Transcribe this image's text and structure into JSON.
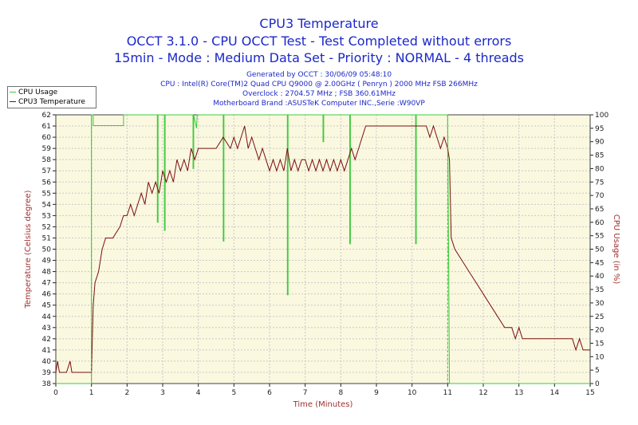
{
  "header": {
    "title": "CPU3 Temperature",
    "subtitle1": "OCCT 3.1.0 - CPU OCCT Test - Test Completed without errors",
    "subtitle2": "15min - Mode : Medium Data Set - Priority : NORMAL - 4 threads",
    "info_generated": "Generated by OCCT : 30/06/09 05:48:10",
    "info_cpu": "CPU : Intel(R) Core(TM)2 Quad CPU Q9000 @ 2.00GHz ( Penryn ) 2000 MHz FSB 266MHz",
    "info_overclock": "Overclock : 2704.57 MHz ; FSB 360.61MHz",
    "info_motherboard": "Motherboard Brand :ASUSTeK Computer INC.,Serie :W90VP"
  },
  "colors": {
    "title": "#1c28c8",
    "plot_background": "#fbf8e0",
    "grid": "#c8c8c8",
    "temperature": "#7a0e0e",
    "cpu_usage": "#3ccc3c",
    "right_axis_label": "#a03030"
  },
  "chart_data": {
    "type": "line",
    "title": "CPU3 Temperature",
    "xlabel": "Time (Minutes)",
    "ylabel": "Temperature (Celsius degree)",
    "y2label": "CPU Usage (in %)",
    "xlim": [
      0,
      15
    ],
    "ylim": [
      38,
      62
    ],
    "y2lim": [
      0,
      100
    ],
    "x_ticks": [
      0,
      1,
      2,
      3,
      4,
      5,
      6,
      7,
      8,
      9,
      10,
      11,
      12,
      13,
      14,
      15
    ],
    "y_ticks": [
      38,
      39,
      40,
      41,
      42,
      43,
      44,
      45,
      46,
      47,
      48,
      49,
      50,
      51,
      52,
      53,
      54,
      55,
      56,
      57,
      58,
      59,
      60,
      61,
      62
    ],
    "y2_ticks": [
      0,
      5,
      10,
      15,
      20,
      25,
      30,
      35,
      40,
      45,
      50,
      55,
      60,
      65,
      70,
      75,
      80,
      85,
      90,
      95,
      100
    ],
    "grid": true,
    "legend": "top-left",
    "series": [
      {
        "name": "CPU Usage",
        "axis": "right",
        "x": [
          0,
          1.0,
          1.0,
          1.05,
          1.05,
          1.9,
          1.9,
          1.92,
          1.92,
          2.85,
          2.85,
          2.87,
          2.87,
          3.05,
          3.05,
          3.07,
          3.07,
          3.85,
          3.85,
          3.87,
          3.87,
          3.95,
          3.97,
          4.7,
          4.7,
          4.72,
          4.72,
          6.5,
          6.5,
          6.52,
          6.52,
          7.5,
          7.5,
          7.52,
          7.52,
          8.25,
          8.25,
          8.27,
          8.27,
          10.1,
          10.1,
          10.12,
          10.12,
          11.0,
          11.0,
          11.05,
          11.05,
          15
        ],
        "values": [
          0,
          0,
          100,
          100,
          96,
          96,
          100,
          100,
          100,
          100,
          60,
          60,
          100,
          100,
          57,
          57,
          100,
          100,
          80,
          80,
          100,
          95,
          100,
          100,
          53,
          53,
          100,
          100,
          33,
          33,
          100,
          100,
          90,
          90,
          100,
          100,
          52,
          52,
          100,
          100,
          52,
          52,
          100,
          100,
          100,
          0,
          0,
          0
        ]
      },
      {
        "name": "CPU3 Temperature",
        "axis": "left",
        "x": [
          0,
          0.05,
          0.1,
          0.3,
          0.4,
          0.45,
          0.5,
          1.0,
          1.05,
          1.1,
          1.2,
          1.3,
          1.4,
          1.5,
          1.6,
          1.8,
          1.9,
          2.0,
          2.1,
          2.2,
          2.3,
          2.4,
          2.5,
          2.6,
          2.7,
          2.8,
          2.9,
          3.0,
          3.1,
          3.2,
          3.3,
          3.4,
          3.5,
          3.6,
          3.7,
          3.8,
          3.9,
          4.0,
          4.2,
          4.5,
          4.7,
          4.9,
          5.0,
          5.1,
          5.2,
          5.3,
          5.4,
          5.5,
          5.6,
          5.7,
          5.8,
          5.9,
          6.0,
          6.1,
          6.2,
          6.3,
          6.4,
          6.5,
          6.6,
          6.7,
          6.8,
          6.9,
          7.0,
          7.1,
          7.2,
          7.3,
          7.4,
          7.5,
          7.6,
          7.7,
          7.8,
          7.9,
          8.0,
          8.1,
          8.2,
          8.3,
          8.4,
          8.5,
          8.6,
          8.7,
          8.8,
          9.2,
          9.6,
          10.0,
          10.2,
          10.4,
          10.5,
          10.6,
          10.7,
          10.8,
          10.9,
          11.0,
          11.05,
          11.1,
          11.2,
          11.4,
          11.6,
          11.8,
          12.0,
          12.2,
          12.4,
          12.6,
          12.8,
          12.9,
          13.0,
          13.1,
          13.2,
          13.4,
          13.6,
          13.8,
          14.0,
          14.2,
          14.4,
          14.5,
          14.6,
          14.7,
          14.8,
          15.0
        ],
        "values": [
          39,
          40,
          39,
          39,
          40,
          39,
          39,
          39,
          45,
          47,
          48,
          50,
          51,
          51,
          51,
          52,
          53,
          53,
          54,
          53,
          54,
          55,
          54,
          56,
          55,
          56,
          55,
          57,
          56,
          57,
          56,
          58,
          57,
          58,
          57,
          59,
          58,
          59,
          59,
          59,
          60,
          59,
          60,
          59,
          60,
          61,
          59,
          60,
          59,
          58,
          59,
          58,
          57,
          58,
          57,
          58,
          57,
          59,
          57,
          58,
          57,
          58,
          58,
          57,
          58,
          57,
          58,
          57,
          58,
          57,
          58,
          57,
          58,
          57,
          58,
          59,
          58,
          59,
          60,
          61,
          61,
          61,
          61,
          61,
          61,
          61,
          60,
          61,
          60,
          59,
          60,
          59,
          58,
          51,
          50,
          49,
          48,
          47,
          46,
          45,
          44,
          43,
          43,
          42,
          43,
          42,
          42,
          42,
          42,
          42,
          42,
          42,
          42,
          42,
          41,
          42,
          41,
          41
        ]
      }
    ]
  }
}
